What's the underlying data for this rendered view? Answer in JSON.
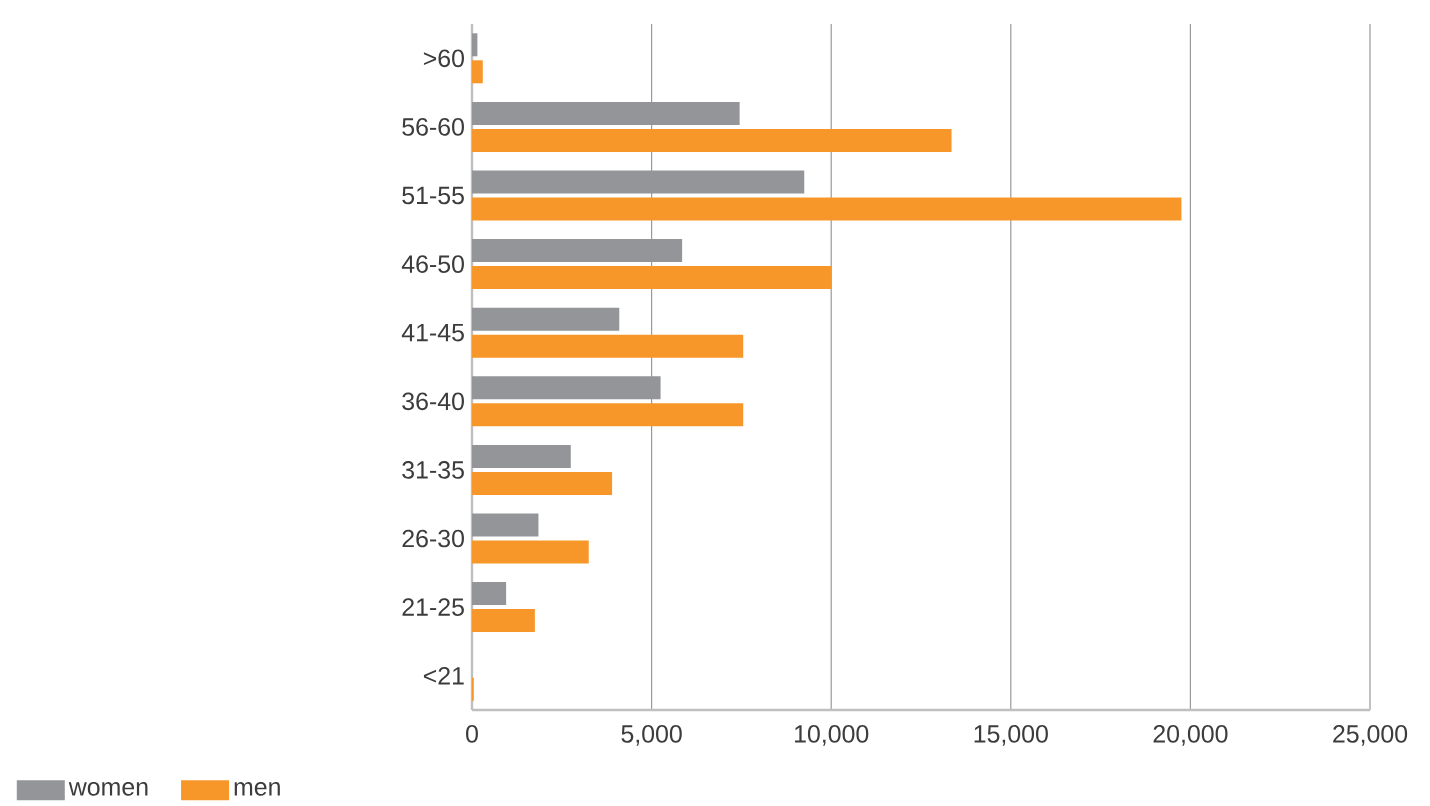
{
  "chart_data": {
    "type": "bar",
    "orientation": "horizontal",
    "categories": [
      ">60",
      "56-60",
      "51-55",
      "46-50",
      "41-45",
      "36-40",
      "31-35",
      "26-30",
      "21-25",
      "<21"
    ],
    "series": [
      {
        "name": "women",
        "color": "#939598",
        "values": [
          150,
          7450,
          9250,
          5850,
          4100,
          5250,
          2750,
          1850,
          950,
          null
        ]
      },
      {
        "name": "men",
        "color": "#f7972a",
        "values": [
          300,
          13350,
          19750,
          10000,
          7550,
          7550,
          3900,
          3250,
          1750,
          50
        ]
      }
    ],
    "xlim": [
      0,
      25000
    ],
    "xticks": [
      0,
      {
        "value": 5000,
        "label": "5,000"
      },
      {
        "value": 10000,
        "label": "10,000"
      },
      {
        "value": 15000,
        "label": "15,000"
      },
      {
        "value": 20000,
        "label": "20,000"
      },
      {
        "value": 25000,
        "label": "25,000"
      }
    ],
    "grid": "x",
    "legend": "bottom left"
  }
}
